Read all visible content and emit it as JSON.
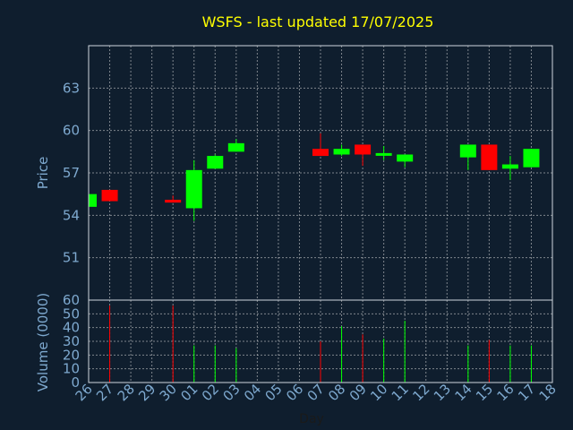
{
  "chart_data": {
    "type": "candlestick",
    "title": "WSFS - last updated 17/07/2025",
    "price_axis": {
      "label": "Price",
      "ylim": [
        48,
        66
      ],
      "ticks": [
        51,
        54,
        57,
        60,
        63
      ]
    },
    "volume_axis": {
      "label": "Volume (0000)",
      "ylim": [
        0,
        60
      ],
      "ticks": [
        0,
        10,
        20,
        30,
        40,
        50,
        60
      ]
    },
    "x_axis": {
      "label": "Day",
      "ticks": [
        "26",
        "27",
        "28",
        "29",
        "30",
        "01",
        "02",
        "03",
        "04",
        "05",
        "06",
        "07",
        "08",
        "09",
        "10",
        "11",
        "12",
        "13",
        "14",
        "15",
        "16",
        "17",
        "18"
      ]
    },
    "grid": true,
    "colors": {
      "up": "#00ff00",
      "down": "#ff0000",
      "title": "#ffff00",
      "axis_text": "#7ea9cf"
    },
    "candles": [
      {
        "day": "26",
        "open": 54.6,
        "high": 55.5,
        "low": 54.6,
        "close": 55.5,
        "volume": 0
      },
      {
        "day": "27",
        "open": 55.8,
        "high": 55.8,
        "low": 55.0,
        "close": 55.0,
        "volume": 56
      },
      {
        "day": "30",
        "open": 55.1,
        "high": 55.4,
        "low": 54.9,
        "close": 54.9,
        "volume": 56
      },
      {
        "day": "01",
        "open": 54.5,
        "high": 57.9,
        "low": 53.6,
        "close": 57.2,
        "volume": 27
      },
      {
        "day": "02",
        "open": 57.3,
        "high": 58.3,
        "low": 57.3,
        "close": 58.2,
        "volume": 27
      },
      {
        "day": "03",
        "open": 58.5,
        "high": 59.4,
        "low": 58.5,
        "close": 59.1,
        "volume": 25
      },
      {
        "day": "07",
        "open": 58.7,
        "high": 59.8,
        "low": 58.2,
        "close": 58.2,
        "volume": 30
      },
      {
        "day": "08",
        "open": 58.3,
        "high": 59.0,
        "low": 58.2,
        "close": 58.7,
        "volume": 41
      },
      {
        "day": "09",
        "open": 59.0,
        "high": 59.0,
        "low": 57.5,
        "close": 58.3,
        "volume": 35
      },
      {
        "day": "10",
        "open": 58.3,
        "high": 58.9,
        "low": 57.9,
        "close": 58.4,
        "volume": 32
      },
      {
        "day": "11",
        "open": 57.8,
        "high": 58.3,
        "low": 57.4,
        "close": 58.3,
        "volume": 45
      },
      {
        "day": "14",
        "open": 58.1,
        "high": 59.0,
        "low": 57.2,
        "close": 59.0,
        "volume": 27
      },
      {
        "day": "15",
        "open": 59.0,
        "high": 59.0,
        "low": 57.2,
        "close": 57.2,
        "volume": 31
      },
      {
        "day": "16",
        "open": 57.3,
        "high": 58.2,
        "low": 56.5,
        "close": 57.6,
        "volume": 27
      },
      {
        "day": "17",
        "open": 57.4,
        "high": 58.7,
        "low": 57.4,
        "close": 58.7,
        "volume": 27
      }
    ]
  }
}
